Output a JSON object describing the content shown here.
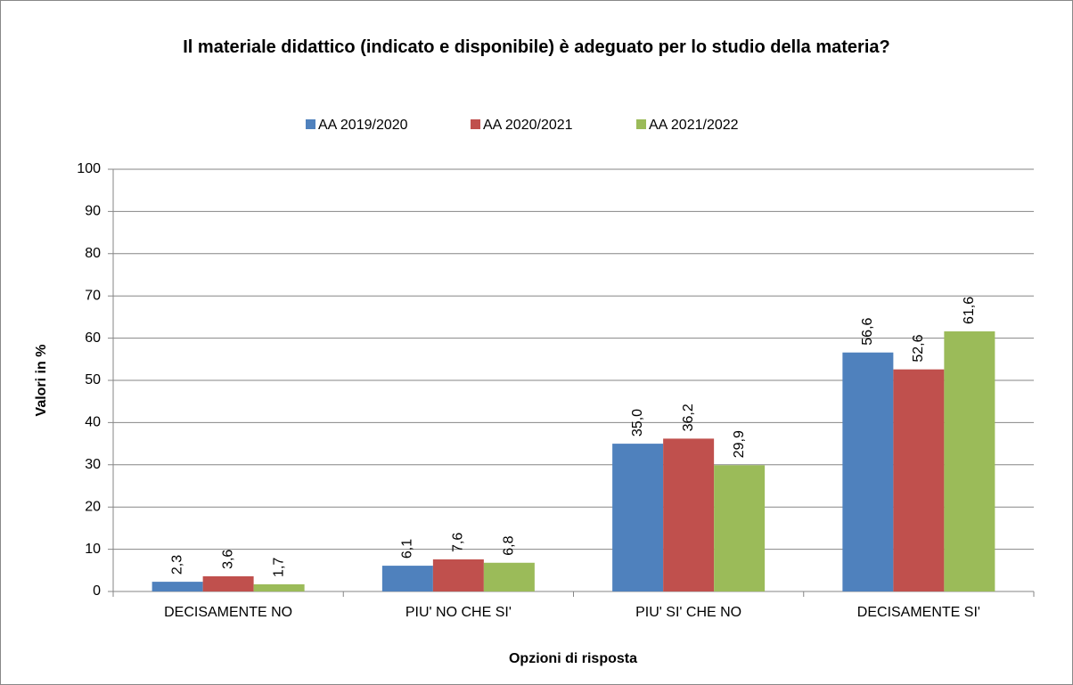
{
  "chart_data": {
    "type": "bar",
    "title": "Il materiale didattico (indicato e disponibile) è adeguato per lo studio della materia?",
    "xlabel": "Opzioni di risposta",
    "ylabel": "Valori in %",
    "categories": [
      "DECISAMENTE NO",
      "PIU' NO CHE SI'",
      "PIU' SI' CHE NO",
      "DECISAMENTE SI'"
    ],
    "series": [
      {
        "name": "AA 2019/2020",
        "color": "#4f81bd",
        "values": [
          2.3,
          6.1,
          35.0,
          56.6
        ],
        "value_labels": [
          "2,3",
          "6,1",
          "35,0",
          "56,6"
        ]
      },
      {
        "name": "AA 2020/2021",
        "color": "#c0504d",
        "values": [
          3.6,
          7.6,
          36.2,
          52.6
        ],
        "value_labels": [
          "3,6",
          "7,6",
          "36,2",
          "52,6"
        ]
      },
      {
        "name": "AA 2021/2022",
        "color": "#9bbb59",
        "values": [
          1.7,
          6.8,
          29.9,
          61.6
        ],
        "value_labels": [
          "1,7",
          "6,8",
          "29,9",
          "61,6"
        ]
      }
    ],
    "ylim": [
      0,
      100
    ],
    "yticks": [
      0,
      10,
      20,
      30,
      40,
      50,
      60,
      70,
      80,
      90,
      100
    ],
    "grid": true,
    "legend": "top"
  }
}
